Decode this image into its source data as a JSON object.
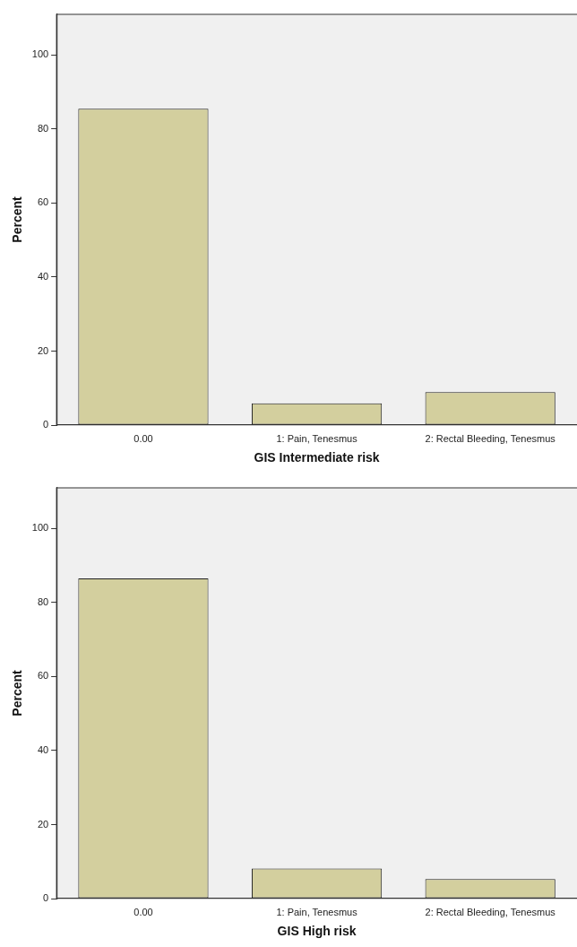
{
  "chart_data": [
    {
      "type": "bar",
      "xlabel": "GIS Intermediate risk",
      "ylabel": "Percent",
      "categories": [
        "0.00",
        "1: Pain, Tenesmus",
        "2: Rectal Bleeding, Tenesmus"
      ],
      "values": [
        85.5,
        5.9,
        8.9
      ],
      "color": "#d3cf9e",
      "ylim": [
        0,
        111
      ],
      "yticks": [
        0,
        20,
        40,
        60,
        80,
        100
      ],
      "grid": false
    },
    {
      "type": "bar",
      "xlabel": "GIS High risk",
      "ylabel": "Percent",
      "categories": [
        "0.00",
        "1: Pain, Tenesmus",
        "2: Rectal Bleeding, Tenesmus"
      ],
      "values": [
        86.5,
        8.1,
        5.3
      ],
      "color": "#d3cf9e",
      "ylim": [
        0,
        111
      ],
      "yticks": [
        0,
        20,
        40,
        60,
        80,
        100
      ],
      "grid": false
    }
  ]
}
